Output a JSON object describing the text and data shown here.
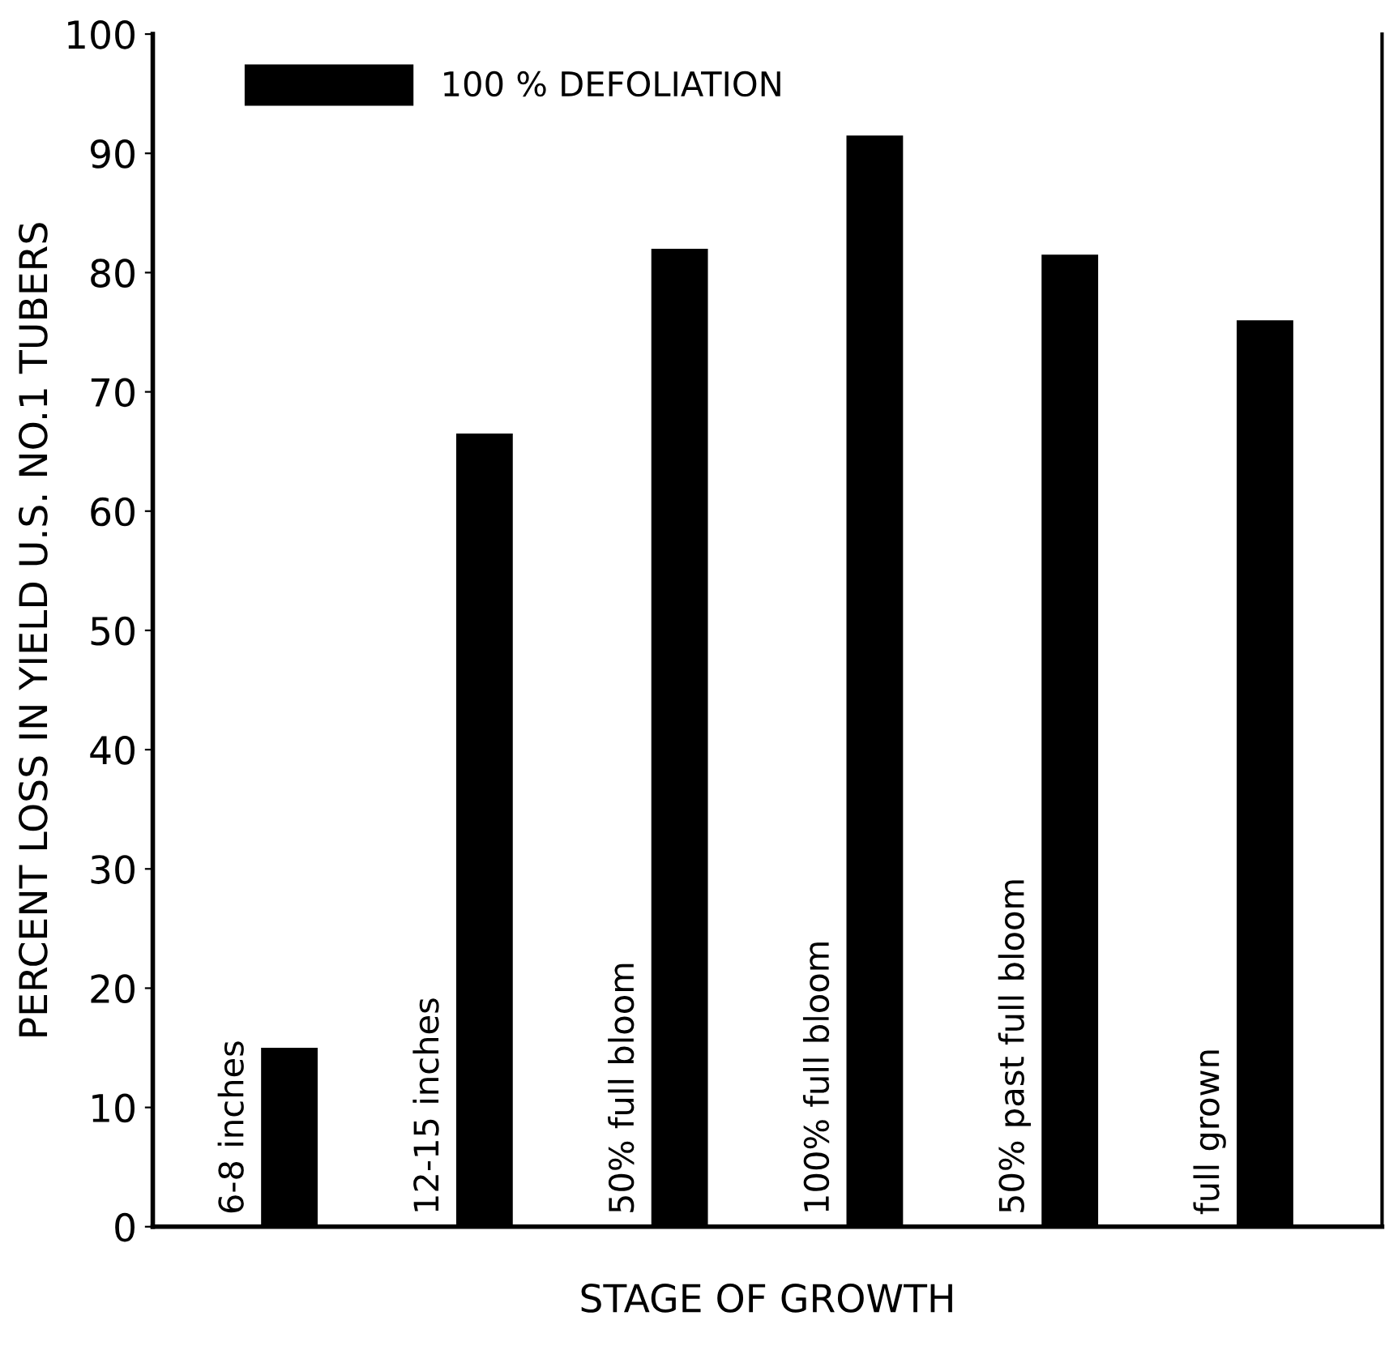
{
  "chart_data": {
    "type": "bar",
    "xlabel": "STAGE OF GROWTH",
    "ylabel": "PERCENT LOSS IN YIELD U.S. NO.1 TUBERS",
    "categories": [
      "6-8 inches",
      "12-15 inches",
      "50% full bloom",
      "100% full bloom",
      "50% past full bloom",
      "full grown"
    ],
    "series": [
      {
        "name": "100 % DEFOLIATION",
        "color": "#000000",
        "values": [
          15,
          66.5,
          82,
          91.5,
          81.5,
          76
        ]
      }
    ],
    "ylim": [
      0,
      100
    ],
    "yticks": [
      0,
      10,
      20,
      30,
      40,
      50,
      60,
      70,
      80,
      90,
      100
    ],
    "grid": false,
    "legend": "top left"
  }
}
